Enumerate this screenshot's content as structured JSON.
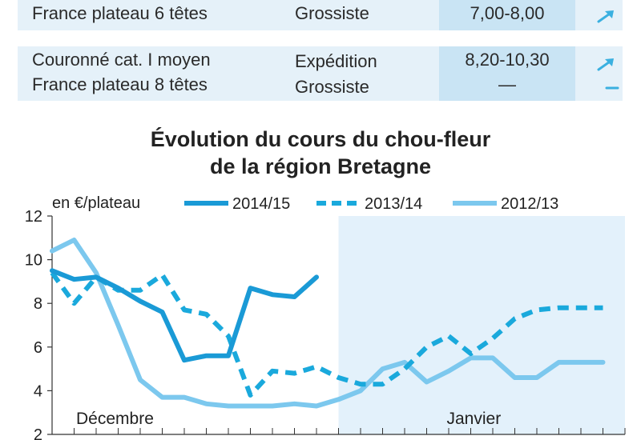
{
  "table": {
    "rows": [
      {
        "product": [
          "France plateau 6 têtes"
        ],
        "market": [
          "Grossiste"
        ],
        "price": [
          "7,00-8,00"
        ],
        "trend": [
          "up"
        ]
      },
      {
        "product": [
          "Couronné cat. I moyen",
          "France plateau 8 têtes"
        ],
        "market": [
          "Expédition",
          "Grossiste"
        ],
        "price": [
          "8,20-10,30",
          "—"
        ],
        "trend": [
          "up",
          "flat"
        ]
      }
    ],
    "trend_color": "#3ab0e0"
  },
  "chart_data": {
    "type": "line",
    "title": [
      "Évolution du cours du chou-fleur",
      "de la région Bretagne"
    ],
    "unit_label": "en €/plateau",
    "ylim": [
      2,
      12
    ],
    "yticks": [
      "2",
      "4",
      "6",
      "8",
      "10",
      "12"
    ],
    "xlim": [
      0,
      26
    ],
    "periods": [
      {
        "label": "Décembre",
        "x_start": 0,
        "x_end": 13
      },
      {
        "label": "Janvier",
        "x_start": 13,
        "x_end": 26
      }
    ],
    "grid": false,
    "legend_position": "top",
    "series": [
      {
        "name": "2014/15",
        "style": "solid",
        "color": "#1a9ad6",
        "x": [
          0,
          1,
          2,
          3,
          4,
          5,
          6,
          7,
          8,
          9,
          10,
          11,
          12
        ],
        "y": [
          9.5,
          9.1,
          9.2,
          8.7,
          8.1,
          7.6,
          5.4,
          5.6,
          5.6,
          8.7,
          8.4,
          8.3,
          9.2
        ]
      },
      {
        "name": "2013/14",
        "style": "dashed",
        "color": "#1aa9dc",
        "x": [
          0,
          1,
          2,
          3,
          4,
          5,
          6,
          7,
          8,
          9,
          10,
          11,
          12,
          13,
          14,
          15,
          16,
          17,
          18,
          19,
          20,
          21,
          22,
          23,
          24,
          25
        ],
        "y": [
          9.4,
          8.0,
          9.2,
          8.6,
          8.6,
          9.3,
          7.7,
          7.5,
          6.5,
          3.8,
          4.9,
          4.8,
          5.1,
          4.6,
          4.3,
          4.3,
          5.0,
          6.0,
          6.5,
          5.7,
          6.4,
          7.3,
          7.7,
          7.8,
          7.8,
          7.8
        ]
      },
      {
        "name": "2012/13",
        "style": "solid",
        "color": "#7cc8ee",
        "x": [
          0,
          1,
          2,
          3,
          4,
          5,
          6,
          7,
          8,
          9,
          10,
          11,
          12,
          13,
          14,
          15,
          16,
          17,
          18,
          19,
          20,
          21,
          22,
          23,
          24,
          25
        ],
        "y": [
          10.4,
          10.9,
          9.4,
          7.0,
          4.5,
          3.7,
          3.7,
          3.4,
          3.3,
          3.3,
          3.3,
          3.4,
          3.3,
          3.6,
          4.0,
          5.0,
          5.3,
          4.4,
          4.9,
          5.5,
          5.5,
          4.6,
          4.6,
          5.3,
          5.3,
          5.3
        ]
      }
    ]
  }
}
